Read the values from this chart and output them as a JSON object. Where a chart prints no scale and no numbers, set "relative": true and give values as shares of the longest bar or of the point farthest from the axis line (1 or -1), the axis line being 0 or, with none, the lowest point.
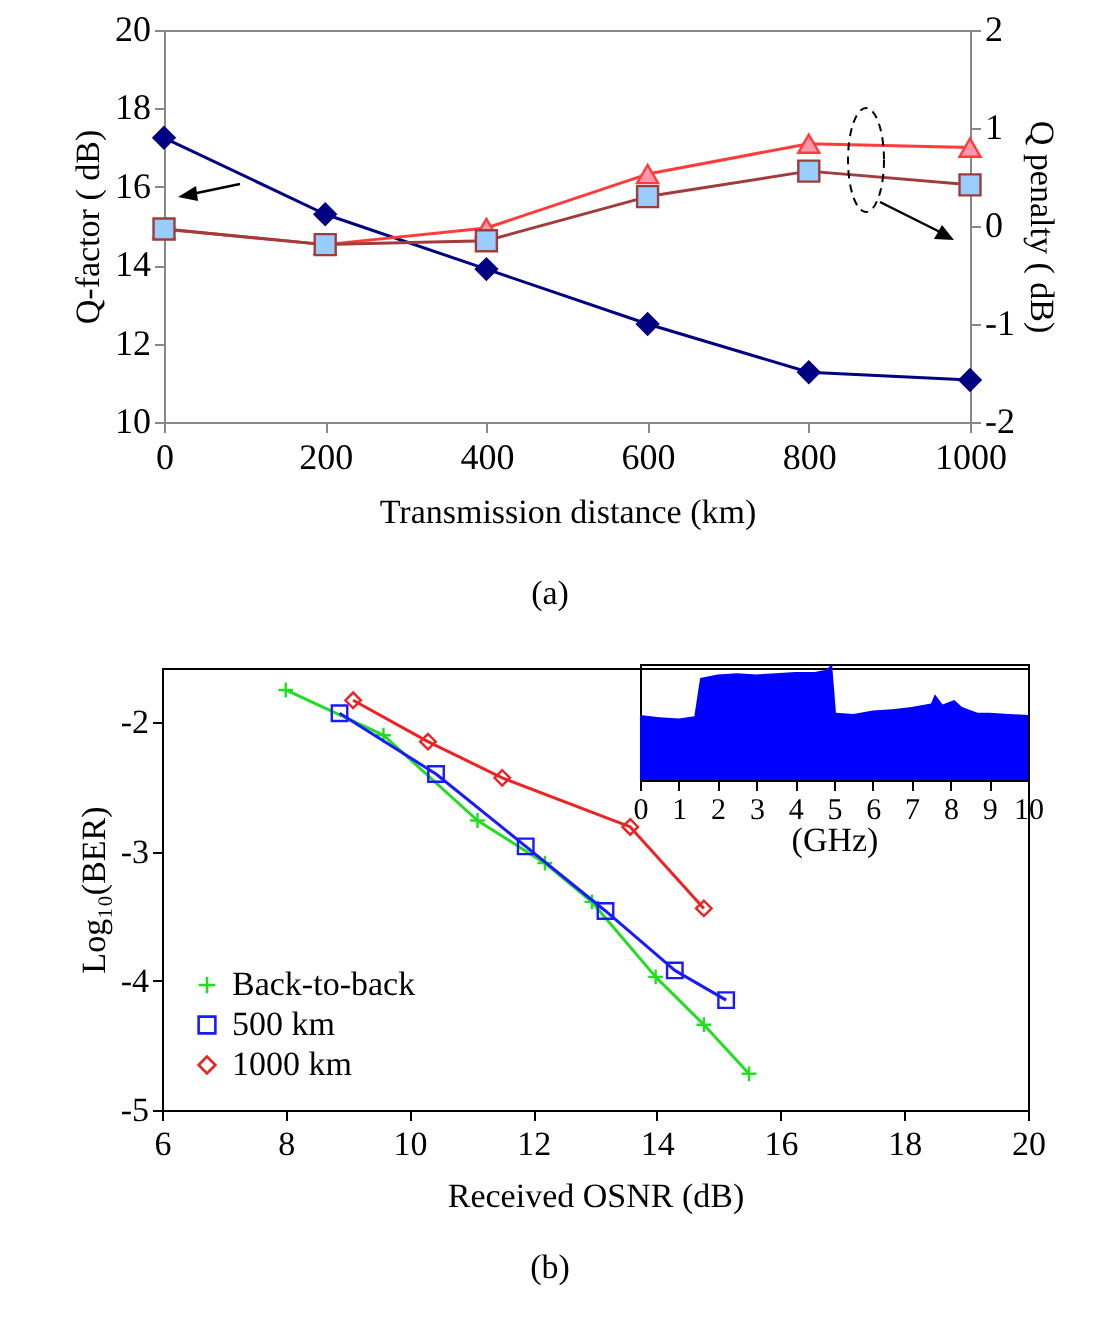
{
  "chart_data": [
    {
      "type": "line",
      "xlabel": "Transmission distance (km)",
      "ylabel": "Q-factor ( dB)",
      "y2label": "Q penalty ( dB)",
      "x": [
        0,
        200,
        400,
        600,
        800,
        1000
      ],
      "xlim": [
        0,
        1000
      ],
      "xticks": [
        0,
        200,
        400,
        600,
        800,
        1000
      ],
      "ylim": [
        10,
        20
      ],
      "yticks": [
        10,
        12,
        14,
        16,
        18,
        20
      ],
      "y2lim": [
        -2,
        2
      ],
      "y2ticks": [
        -2,
        -1,
        0,
        1,
        2
      ],
      "grid": false,
      "annotations": [
        "(a)"
      ],
      "series": [
        {
          "color": "#000080",
          "marker": "diamond",
          "values": [
            17.25,
            15.3,
            13.9,
            12.5,
            11.27,
            11.07
          ]
        },
        {
          "color": "#ff3b3b",
          "marker": "triangle",
          "axis": "y2",
          "colors": [
            "#ff99aa",
            "#ff99aa",
            "#ff99aa",
            "#ff99aa",
            "#ff99aa",
            "#ff99aa"
          ],
          "values": [
            -0.03,
            -0.19,
            -0.02,
            0.53,
            0.84,
            0.8
          ]
        },
        {
          "color": "#a03c3c",
          "marker": "square",
          "axis": "y2",
          "colors": [
            "#99ccff",
            "#99ccff",
            "#99ccff",
            "#99ccff",
            "#99ccff",
            "#99ccff"
          ],
          "values": [
            -0.03,
            -0.19,
            -0.15,
            0.3,
            0.56,
            0.42
          ]
        }
      ]
    },
    {
      "type": "line",
      "xlabel": "Received OSNR (dB)",
      "ylabel": "Log₁₀(BER)",
      "xlim": [
        6,
        20
      ],
      "xticks": [
        6,
        8,
        10,
        12,
        14,
        16,
        18,
        20
      ],
      "ylim": [
        -5,
        -1.58
      ],
      "yticks": [
        -2,
        -3,
        -4,
        -5
      ],
      "grid": false,
      "legend": "bottom left",
      "annotations": [
        "(b)"
      ],
      "series": [
        {
          "name": "Back-to-back",
          "color": "#22dd22",
          "marker": "cross",
          "x": [
            8.0,
            9.58,
            11.1,
            12.19,
            12.95,
            13.98,
            14.76,
            15.49
          ],
          "values": [
            -1.75,
            -2.1,
            -2.76,
            -3.09,
            -3.39,
            -3.97,
            -4.34,
            -4.72
          ]
        },
        {
          "name": "500 km",
          "color": "#1a1aff",
          "marker": "square",
          "x": [
            8.87,
            10.43,
            11.88,
            13.17,
            14.29,
            15.12
          ],
          "values": [
            -1.93,
            -2.4,
            -2.96,
            -3.46,
            -3.92,
            -4.15
          ]
        },
        {
          "name": "1000 km",
          "color": "#ee2222",
          "marker": "diamond",
          "x": [
            9.09,
            10.3,
            11.5,
            13.57,
            14.76
          ],
          "values": [
            -1.83,
            -2.15,
            -2.43,
            -2.81,
            -3.44
          ]
        }
      ]
    },
    {
      "type": "area",
      "relative": true,
      "xlabel": "(GHz)",
      "xlim": [
        0,
        10
      ],
      "xticks": [
        0,
        1,
        2,
        3,
        4,
        5,
        6,
        7,
        8,
        9,
        10
      ],
      "x": [
        0,
        0.5,
        1.0,
        1.4,
        1.55,
        2,
        2.5,
        3,
        3.5,
        4,
        4.5,
        4.8,
        4.95,
        5.05,
        5.5,
        6,
        6.5,
        7,
        7.5,
        7.6,
        7.8,
        8.1,
        8.3,
        8.7,
        9,
        9.5,
        10
      ],
      "series": [
        {
          "color": "#0000ff",
          "values": [
            0.56,
            0.54,
            0.53,
            0.55,
            0.88,
            0.91,
            0.92,
            0.91,
            0.92,
            0.93,
            0.93,
            0.95,
            1.0,
            0.58,
            0.57,
            0.6,
            0.61,
            0.63,
            0.66,
            0.74,
            0.65,
            0.69,
            0.63,
            0.58,
            0.58,
            0.57,
            0.56
          ]
        }
      ]
    }
  ]
}
